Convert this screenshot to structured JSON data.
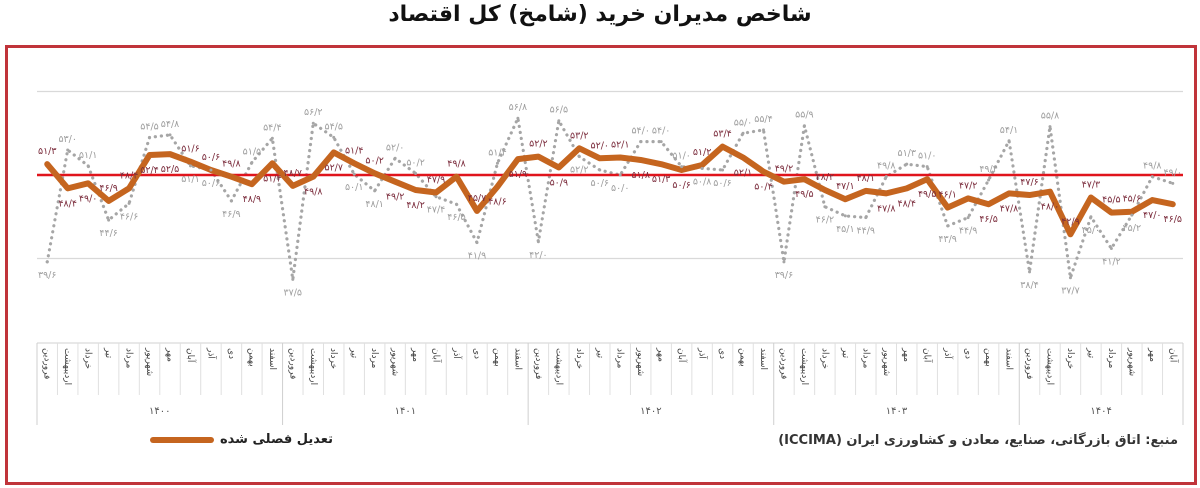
{
  "chart_data": {
    "type": "line",
    "title": "شاخص مدیران خرید (شامخ) کل اقتصاد",
    "years": [
      {
        "label": "۱۴۰۰",
        "months": 12
      },
      {
        "label": "۱۴۰۱",
        "months": 12
      },
      {
        "label": "۱۴۰۲",
        "months": 12
      },
      {
        "label": "۱۴۰۳",
        "months": 12
      },
      {
        "label": "۱۴۰۴",
        "months": 8
      }
    ],
    "month_names": [
      "فروردین",
      "اردیبهشت",
      "خرداد",
      "تیر",
      "مرداد",
      "شهریور",
      "مهر",
      "آبان",
      "آذر",
      "دی",
      "بهمن",
      "اسفند"
    ],
    "ylim": [
      35,
      62
    ],
    "gridlines": [
      40,
      50,
      60
    ],
    "reference_line": {
      "value": 50,
      "color": "#e0141c"
    },
    "grid": true,
    "legend_position": "bottom-left",
    "series": [
      {
        "name": "تعدیل فصلی شده",
        "style": "solid",
        "color": "#c5651f",
        "label_color": "#7b2c3c",
        "values": [
          51.3,
          48.4,
          49.0,
          46.9,
          48.4,
          52.4,
          52.5,
          51.6,
          50.6,
          49.8,
          48.9,
          51.4,
          48.7,
          49.8,
          52.7,
          51.4,
          50.2,
          49.2,
          48.2,
          47.9,
          49.8,
          45.7,
          48.6,
          51.9,
          52.2,
          50.9,
          53.2,
          52.0,
          52.1,
          51.8,
          51.3,
          50.6,
          51.2,
          53.4,
          52.1,
          50.4,
          49.2,
          49.5,
          48.2,
          47.1,
          48.1,
          47.8,
          48.4,
          49.5,
          46.1,
          47.2,
          46.5,
          47.8,
          47.6,
          48.0,
          42.9,
          47.3,
          45.5,
          45.6,
          47.0,
          46.5
        ]
      },
      {
        "style": "dotted",
        "color": "#a6a6a6",
        "label_color": "#9e9e9e",
        "values": [
          39.6,
          53.0,
          51.1,
          44.6,
          46.6,
          54.5,
          54.8,
          51.1,
          50.6,
          46.9,
          51.5,
          54.4,
          37.5,
          56.2,
          54.5,
          50.1,
          48.1,
          52.0,
          50.2,
          47.4,
          46.5,
          41.9,
          51.4,
          56.8,
          42.0,
          56.5,
          52.2,
          50.6,
          50.0,
          54.0,
          54.0,
          51.0,
          50.8,
          50.6,
          55.0,
          55.4,
          39.6,
          55.9,
          46.2,
          45.1,
          44.9,
          49.8,
          51.3,
          51.0,
          43.9,
          44.9,
          49.4,
          54.1,
          38.4,
          55.8,
          37.7,
          45.0,
          41.2,
          45.2,
          49.8,
          49.0
        ]
      }
    ]
  },
  "legend": {
    "label": "تعدیل فصلی شده"
  },
  "source": "منبع: اتاق بازرگانی، صنایع، معادن و کشاورزی ایران (ICCIMA)"
}
